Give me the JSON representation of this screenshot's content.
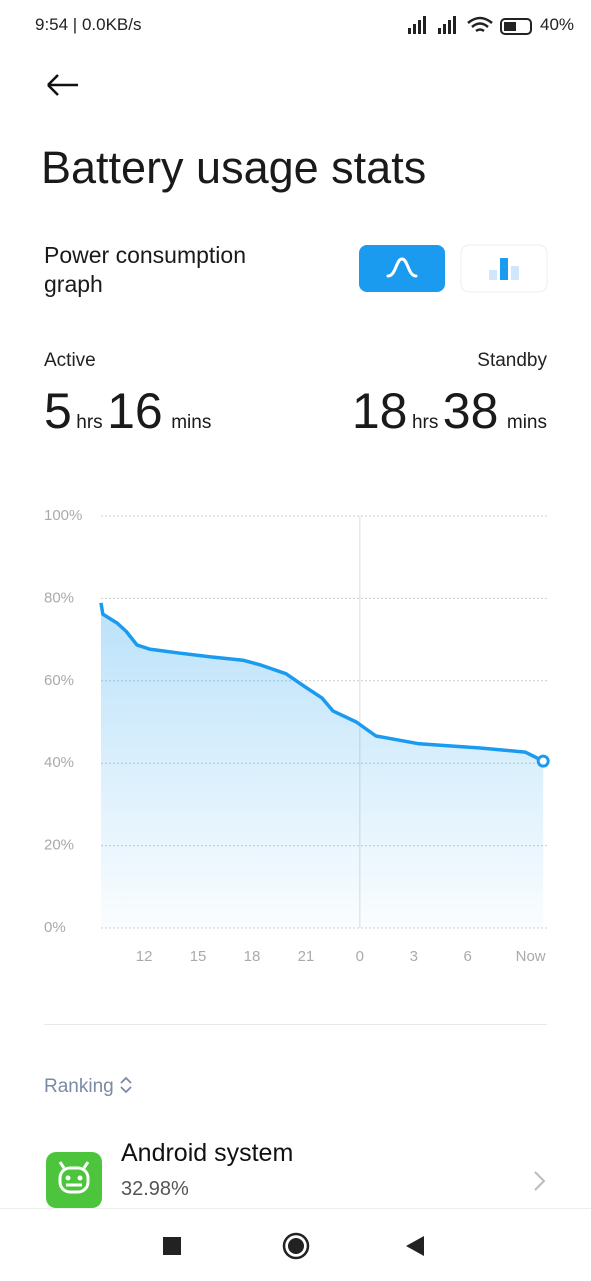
{
  "status_bar": {
    "time": "9:54 | 0.0KB/s",
    "battery": "40%"
  },
  "header": {
    "title": "Battery usage stats"
  },
  "graph_section": {
    "label": "Power consumption graph"
  },
  "active": {
    "label": "Active",
    "hours": "5",
    "hours_unit": "hrs",
    "minutes": "16",
    "minutes_unit": "mins"
  },
  "standby": {
    "label": "Standby",
    "hours": "18",
    "hours_unit": "hrs",
    "minutes": "38",
    "minutes_unit": "mins"
  },
  "chart_data": {
    "type": "line",
    "x": [
      9.6,
      9.7,
      10.5,
      11.0,
      11.6,
      12.3,
      14.0,
      15.7,
      17.5,
      18.5,
      19.9,
      20.9,
      21.9,
      22.5,
      23.8,
      24.9,
      27.3,
      30.7,
      33.2,
      34.2
    ],
    "values": [
      78.9,
      76.2,
      74,
      72,
      68.7,
      67.7,
      66.7,
      65.8,
      65,
      63.8,
      61.7,
      58.7,
      55.8,
      52.7,
      50,
      46.6,
      44.7,
      43.7,
      42.7,
      40.5
    ],
    "color": "#1a9bef",
    "xlim": [
      9.6,
      34.3
    ],
    "xticks": [
      12,
      15,
      18,
      21,
      {
        "value": 24,
        "label": "0"
      },
      {
        "value": 27,
        "label": "3"
      },
      {
        "value": 30,
        "label": "6"
      },
      {
        "value": 33.5,
        "label": "Now"
      }
    ],
    "ylim": [
      0,
      100
    ],
    "yticks": [
      {
        "value": 0,
        "label": "0%"
      },
      {
        "value": 20,
        "label": "20%"
      },
      {
        "value": 40,
        "label": "40%"
      },
      {
        "value": 60,
        "label": "60%"
      },
      {
        "value": 80,
        "label": "80%"
      },
      {
        "value": 100,
        "label": "100%"
      }
    ],
    "grid": true
  },
  "ranking": {
    "label": "Ranking",
    "items": [
      {
        "name": "Android system",
        "percent": "32.98%"
      }
    ]
  }
}
